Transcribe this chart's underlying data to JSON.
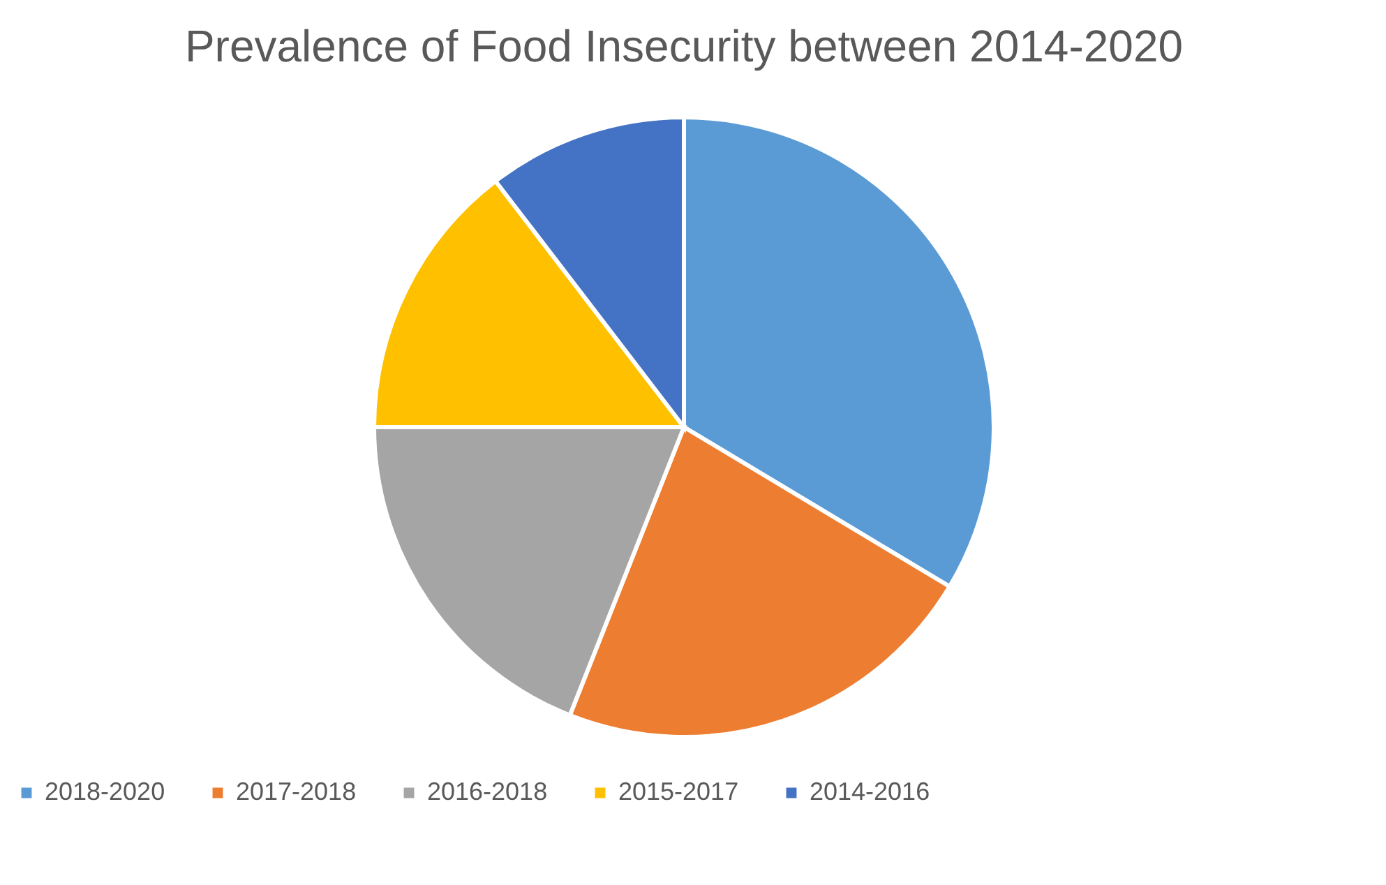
{
  "chart_data": {
    "type": "pie",
    "title": "Prevalence of Food Insecurity between 2014-2020",
    "categories": [
      "2018-2020",
      "2017-2018",
      "2016-2018",
      "2015-2017",
      "2014-2016"
    ],
    "values": [
      33.6,
      22.4,
      19.0,
      14.6,
      10.4
    ],
    "colors": [
      "#5b9bd5",
      "#ed7d31",
      "#a5a5a5",
      "#ffc000",
      "#4472c4"
    ],
    "legend": "bottom"
  }
}
